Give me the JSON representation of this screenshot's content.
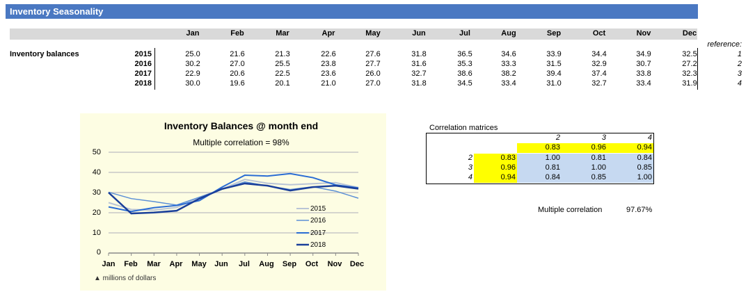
{
  "sheet": {
    "title": "Inventory Seasonality",
    "row_label": "Inventory balances",
    "reference_label": "reference:",
    "months": [
      "Jan",
      "Feb",
      "Mar",
      "Apr",
      "May",
      "Jun",
      "Jul",
      "Aug",
      "Sep",
      "Oct",
      "Nov",
      "Dec"
    ],
    "rows": [
      {
        "year": "2015",
        "ref": "1",
        "values": [
          "25.0",
          "21.6",
          "21.3",
          "22.6",
          "27.6",
          "31.8",
          "36.5",
          "34.6",
          "33.9",
          "34.4",
          "34.9",
          "32.5"
        ]
      },
      {
        "year": "2016",
        "ref": "2",
        "values": [
          "30.2",
          "27.0",
          "25.5",
          "23.8",
          "27.7",
          "31.6",
          "35.3",
          "33.3",
          "31.5",
          "32.9",
          "30.7",
          "27.2"
        ]
      },
      {
        "year": "2017",
        "ref": "3",
        "values": [
          "22.9",
          "20.6",
          "22.5",
          "23.6",
          "26.0",
          "32.7",
          "38.6",
          "38.2",
          "39.4",
          "37.4",
          "33.8",
          "32.3"
        ]
      },
      {
        "year": "2018",
        "ref": "4",
        "values": [
          "30.0",
          "19.6",
          "20.1",
          "21.0",
          "27.0",
          "31.8",
          "34.5",
          "33.4",
          "31.0",
          "32.7",
          "33.4",
          "31.9"
        ]
      }
    ]
  },
  "chart_data": {
    "type": "line",
    "title": "Inventory Balances @ month end",
    "subtitle": "Multiple correlation = 98%",
    "unit_note": "▲ millions of dollars",
    "categories": [
      "Jan",
      "Feb",
      "Mar",
      "Apr",
      "May",
      "Jun",
      "Jul",
      "Aug",
      "Sep",
      "Oct",
      "Nov",
      "Dec"
    ],
    "yticks": [
      "0",
      "10",
      "20",
      "30",
      "40",
      "50"
    ],
    "ylim": [
      0,
      50
    ],
    "grid": true,
    "legend_position": "inside-right",
    "series": [
      {
        "name": "2015",
        "color": "#b9c4d6",
        "width": 2,
        "values": [
          25.0,
          21.6,
          21.3,
          22.6,
          27.6,
          31.8,
          36.5,
          34.6,
          33.9,
          34.4,
          34.9,
          32.5
        ]
      },
      {
        "name": "2016",
        "color": "#5b8fd6",
        "width": 1.5,
        "values": [
          30.2,
          27.0,
          25.5,
          23.8,
          27.7,
          31.6,
          35.3,
          33.3,
          31.5,
          32.9,
          30.7,
          27.2
        ]
      },
      {
        "name": "2017",
        "color": "#2a6cd4",
        "width": 2,
        "values": [
          22.9,
          20.6,
          22.5,
          23.6,
          26.0,
          32.7,
          38.6,
          38.2,
          39.4,
          37.4,
          33.8,
          32.3
        ]
      },
      {
        "name": "2018",
        "color": "#1a3f9a",
        "width": 2.5,
        "values": [
          30.0,
          19.6,
          20.1,
          21.0,
          27.0,
          31.8,
          34.5,
          33.4,
          31.0,
          32.7,
          33.4,
          31.9
        ]
      }
    ]
  },
  "correlation": {
    "title": "Correlation matrices",
    "col_headers": [
      "2",
      "3",
      "4"
    ],
    "top_row": [
      "0.83",
      "0.96",
      "0.94"
    ],
    "rows": [
      {
        "label": "2",
        "highlight": "0.83",
        "values": [
          "1.00",
          "0.81",
          "0.84"
        ]
      },
      {
        "label": "3",
        "highlight": "0.96",
        "values": [
          "0.81",
          "1.00",
          "0.85"
        ]
      },
      {
        "label": "4",
        "highlight": "0.94",
        "values": [
          "0.84",
          "0.85",
          "1.00"
        ]
      }
    ],
    "multiple_label": "Multiple correlation",
    "multiple_value": "97.67%"
  }
}
